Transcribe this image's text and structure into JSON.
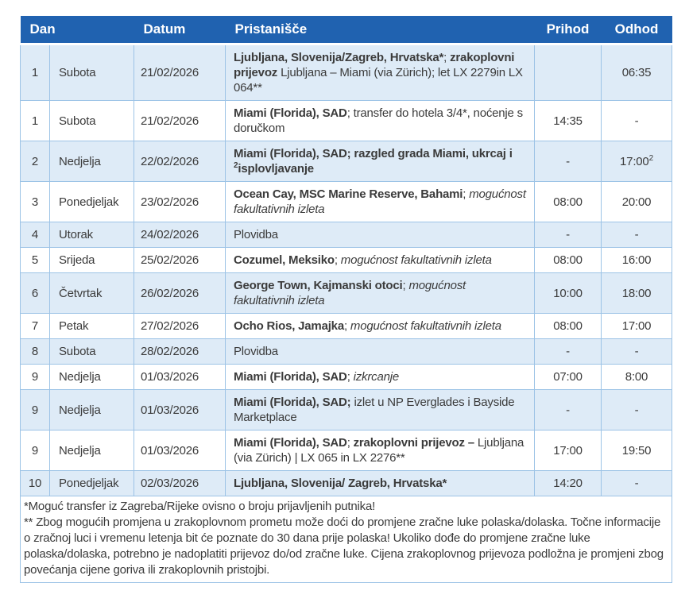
{
  "colors": {
    "header_bg": "#2062b0",
    "band_bg": "#deebf7",
    "border": "#9cc3e6",
    "text": "#3b3b3b"
  },
  "table": {
    "headers": {
      "dan": "Dan",
      "datum": "Datum",
      "pristanisce": "Pristanišče",
      "prihod": "Prihod",
      "odhod": "Odhod"
    },
    "rows": [
      {
        "num": "1",
        "day": "Subota",
        "date": "21/02/2026",
        "port": [
          {
            "t": "Ljubljana, Slovenija/Zagreb, Hrvatska*",
            "b": true
          },
          {
            "t": "; "
          },
          {
            "t": "zrakoplovni prijevoz ",
            "b": true
          },
          {
            "t": "Ljubljana – Miami (via Zürich); let LX 2279in LX 064**"
          }
        ],
        "prihod": "",
        "odhod": "06:35"
      },
      {
        "num": "1",
        "day": "Subota",
        "date": "21/02/2026",
        "port": [
          {
            "t": "Miami (Florida), SAD",
            "b": true
          },
          {
            "t": "; transfer do hotela 3/4*, noćenje s doručkom"
          }
        ],
        "prihod": "14:35",
        "odhod": "-"
      },
      {
        "num": "2",
        "day": "Nedjelja",
        "date": "22/02/2026",
        "port": [
          {
            "t": "Miami (Florida), SAD; razgled grada Miami, ukrcaj i ",
            "b": true
          },
          {
            "t": "2",
            "b": true,
            "sup": true
          },
          {
            "t": "isplovljavanje",
            "b": true
          }
        ],
        "prihod": "-",
        "odhod": "17:00",
        "odhod_sup": "2"
      },
      {
        "num": "3",
        "day": "Ponedjeljak",
        "date": "23/02/2026",
        "port": [
          {
            "t": "Ocean Cay, MSC Marine Reserve, Bahami",
            "b": true
          },
          {
            "t": "; "
          },
          {
            "t": "mogućnost fakultativnih izleta",
            "i": true
          }
        ],
        "prihod": "08:00",
        "odhod": "20:00"
      },
      {
        "num": "4",
        "day": "Utorak",
        "date": "24/02/2026",
        "port": [
          {
            "t": "Plovidba"
          }
        ],
        "prihod": "-",
        "odhod": "-"
      },
      {
        "num": "5",
        "day": "Srijeda",
        "date": "25/02/2026",
        "port": [
          {
            "t": "Cozumel, Meksiko",
            "b": true
          },
          {
            "t": "; "
          },
          {
            "t": "mogućnost fakultativnih izleta",
            "i": true
          }
        ],
        "prihod": "08:00",
        "odhod": "16:00"
      },
      {
        "num": "6",
        "day": "Četvrtak",
        "date": "26/02/2026",
        "port": [
          {
            "t": "George Town, Kajmanski otoci",
            "b": true
          },
          {
            "t": "; "
          },
          {
            "t": "mogućnost fakultativnih izleta",
            "i": true
          }
        ],
        "prihod": "10:00",
        "odhod": "18:00"
      },
      {
        "num": "7",
        "day": "Petak",
        "date": "27/02/2026",
        "port": [
          {
            "t": "Ocho Rios, Jamajka",
            "b": true
          },
          {
            "t": "; "
          },
          {
            "t": "mogućnost fakultativnih izleta",
            "i": true
          }
        ],
        "prihod": "08:00",
        "odhod": "17:00"
      },
      {
        "num": "8",
        "day": "Subota",
        "date": "28/02/2026",
        "port": [
          {
            "t": "Plovidba"
          }
        ],
        "prihod": "-",
        "odhod": "-"
      },
      {
        "num": "9",
        "day": "Nedjelja",
        "date": "01/03/2026",
        "port": [
          {
            "t": "Miami (Florida), SAD",
            "b": true
          },
          {
            "t": "; "
          },
          {
            "t": "izkrcanje",
            "i": true
          }
        ],
        "prihod": "07:00",
        "odhod": "8:00"
      },
      {
        "num": "9",
        "day": "Nedjelja",
        "date": "01/03/2026",
        "port": [
          {
            "t": "Miami (Florida), SAD;",
            "b": true
          },
          {
            "t": " izlet u NP Everglades i Bayside Marketplace"
          }
        ],
        "prihod": "-",
        "odhod": "-"
      },
      {
        "num": "9",
        "day": "Nedjelja",
        "date": "01/03/2026",
        "port": [
          {
            "t": "Miami (Florida), SAD",
            "b": true
          },
          {
            "t": "; "
          },
          {
            "t": "zrakoplovni prijevoz –",
            "b": true
          },
          {
            "t": " Ljubljana (via Zürich) | LX 065 in LX 2276**"
          }
        ],
        "prihod": "17:00",
        "odhod": "19:50"
      },
      {
        "num": "10",
        "day": "Ponedjeljak",
        "date": "02/03/2026",
        "port": [
          {
            "t": "Ljubljana, Slovenija/ Zagreb, Hrvatska*",
            "b": true
          }
        ],
        "prihod": "14:20",
        "odhod": "-"
      }
    ]
  },
  "footnotes": {
    "line1": "*Moguć transfer iz Zagreba/Rijeke ovisno o broju prijavljenih putnika!",
    "line2": "** Zbog mogućih promjena u zrakoplovnom prometu može doći do promjene zračne luke polaska/dolaska. Točne informacije o zračnoj luci i vremenu letenja bit će poznate do 30 dana prije polaska! Ukoliko dođe do promjene zračne luke polaska/dolaska, potrebno je nadoplatiti prijevoz do/od zračne luke. Cijena zrakoplovnog prijevoza podložna je promjeni zbog povećanja cijene goriva ili zrakoplovnih pristojbi."
  }
}
